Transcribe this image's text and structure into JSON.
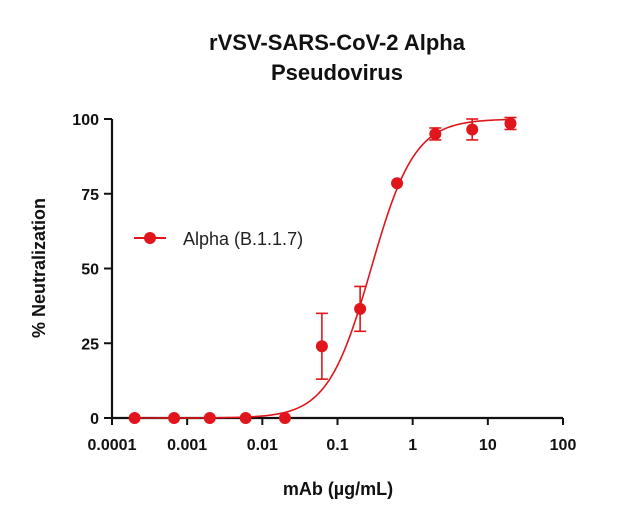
{
  "chart_data": {
    "type": "scatter",
    "title_line1": "rVSV-SARS-CoV-2 Alpha",
    "title_line2": "Pseudovirus",
    "xlabel": "mAb (µg/mL)",
    "ylabel": "% Neutralization",
    "x_scale": "log",
    "xlim": [
      0.0001,
      100
    ],
    "ylim": [
      0,
      100
    ],
    "x_ticks": [
      {
        "value": 0.0001,
        "label": "0.0001"
      },
      {
        "value": 0.001,
        "label": "0.001"
      },
      {
        "value": 0.01,
        "label": "0.01"
      },
      {
        "value": 0.1,
        "label": "0.1"
      },
      {
        "value": 1,
        "label": "1"
      },
      {
        "value": 10,
        "label": "10"
      },
      {
        "value": 100,
        "label": "100"
      }
    ],
    "y_ticks": [
      {
        "value": 0,
        "label": "0"
      },
      {
        "value": 25,
        "label": "25"
      },
      {
        "value": 50,
        "label": "50"
      },
      {
        "value": 75,
        "label": "75"
      },
      {
        "value": 100,
        "label": "100"
      }
    ],
    "grid": false,
    "legend_position": "left-middle",
    "series": [
      {
        "name": "Alpha (B.1.1.7)",
        "color": "#e0161c",
        "points": [
          {
            "x": 0.0002,
            "y": 0,
            "err": 0
          },
          {
            "x": 0.00067,
            "y": 0,
            "err": 0
          },
          {
            "x": 0.002,
            "y": 0,
            "err": 0
          },
          {
            "x": 0.006,
            "y": 0,
            "err": 0
          },
          {
            "x": 0.02,
            "y": 0,
            "err": 0
          },
          {
            "x": 0.062,
            "y": 24,
            "err": 11
          },
          {
            "x": 0.2,
            "y": 36.5,
            "err": 7.5
          },
          {
            "x": 0.62,
            "y": 78.5,
            "err": 0
          },
          {
            "x": 2,
            "y": 95,
            "err": 2
          },
          {
            "x": 6.2,
            "y": 96.5,
            "err": 3.5
          },
          {
            "x": 20,
            "y": 98.5,
            "err": 2
          }
        ],
        "fit": {
          "model": "4PL",
          "bottom": 0,
          "top": 100,
          "ec50": 0.28,
          "hill": 1.5
        }
      }
    ]
  }
}
